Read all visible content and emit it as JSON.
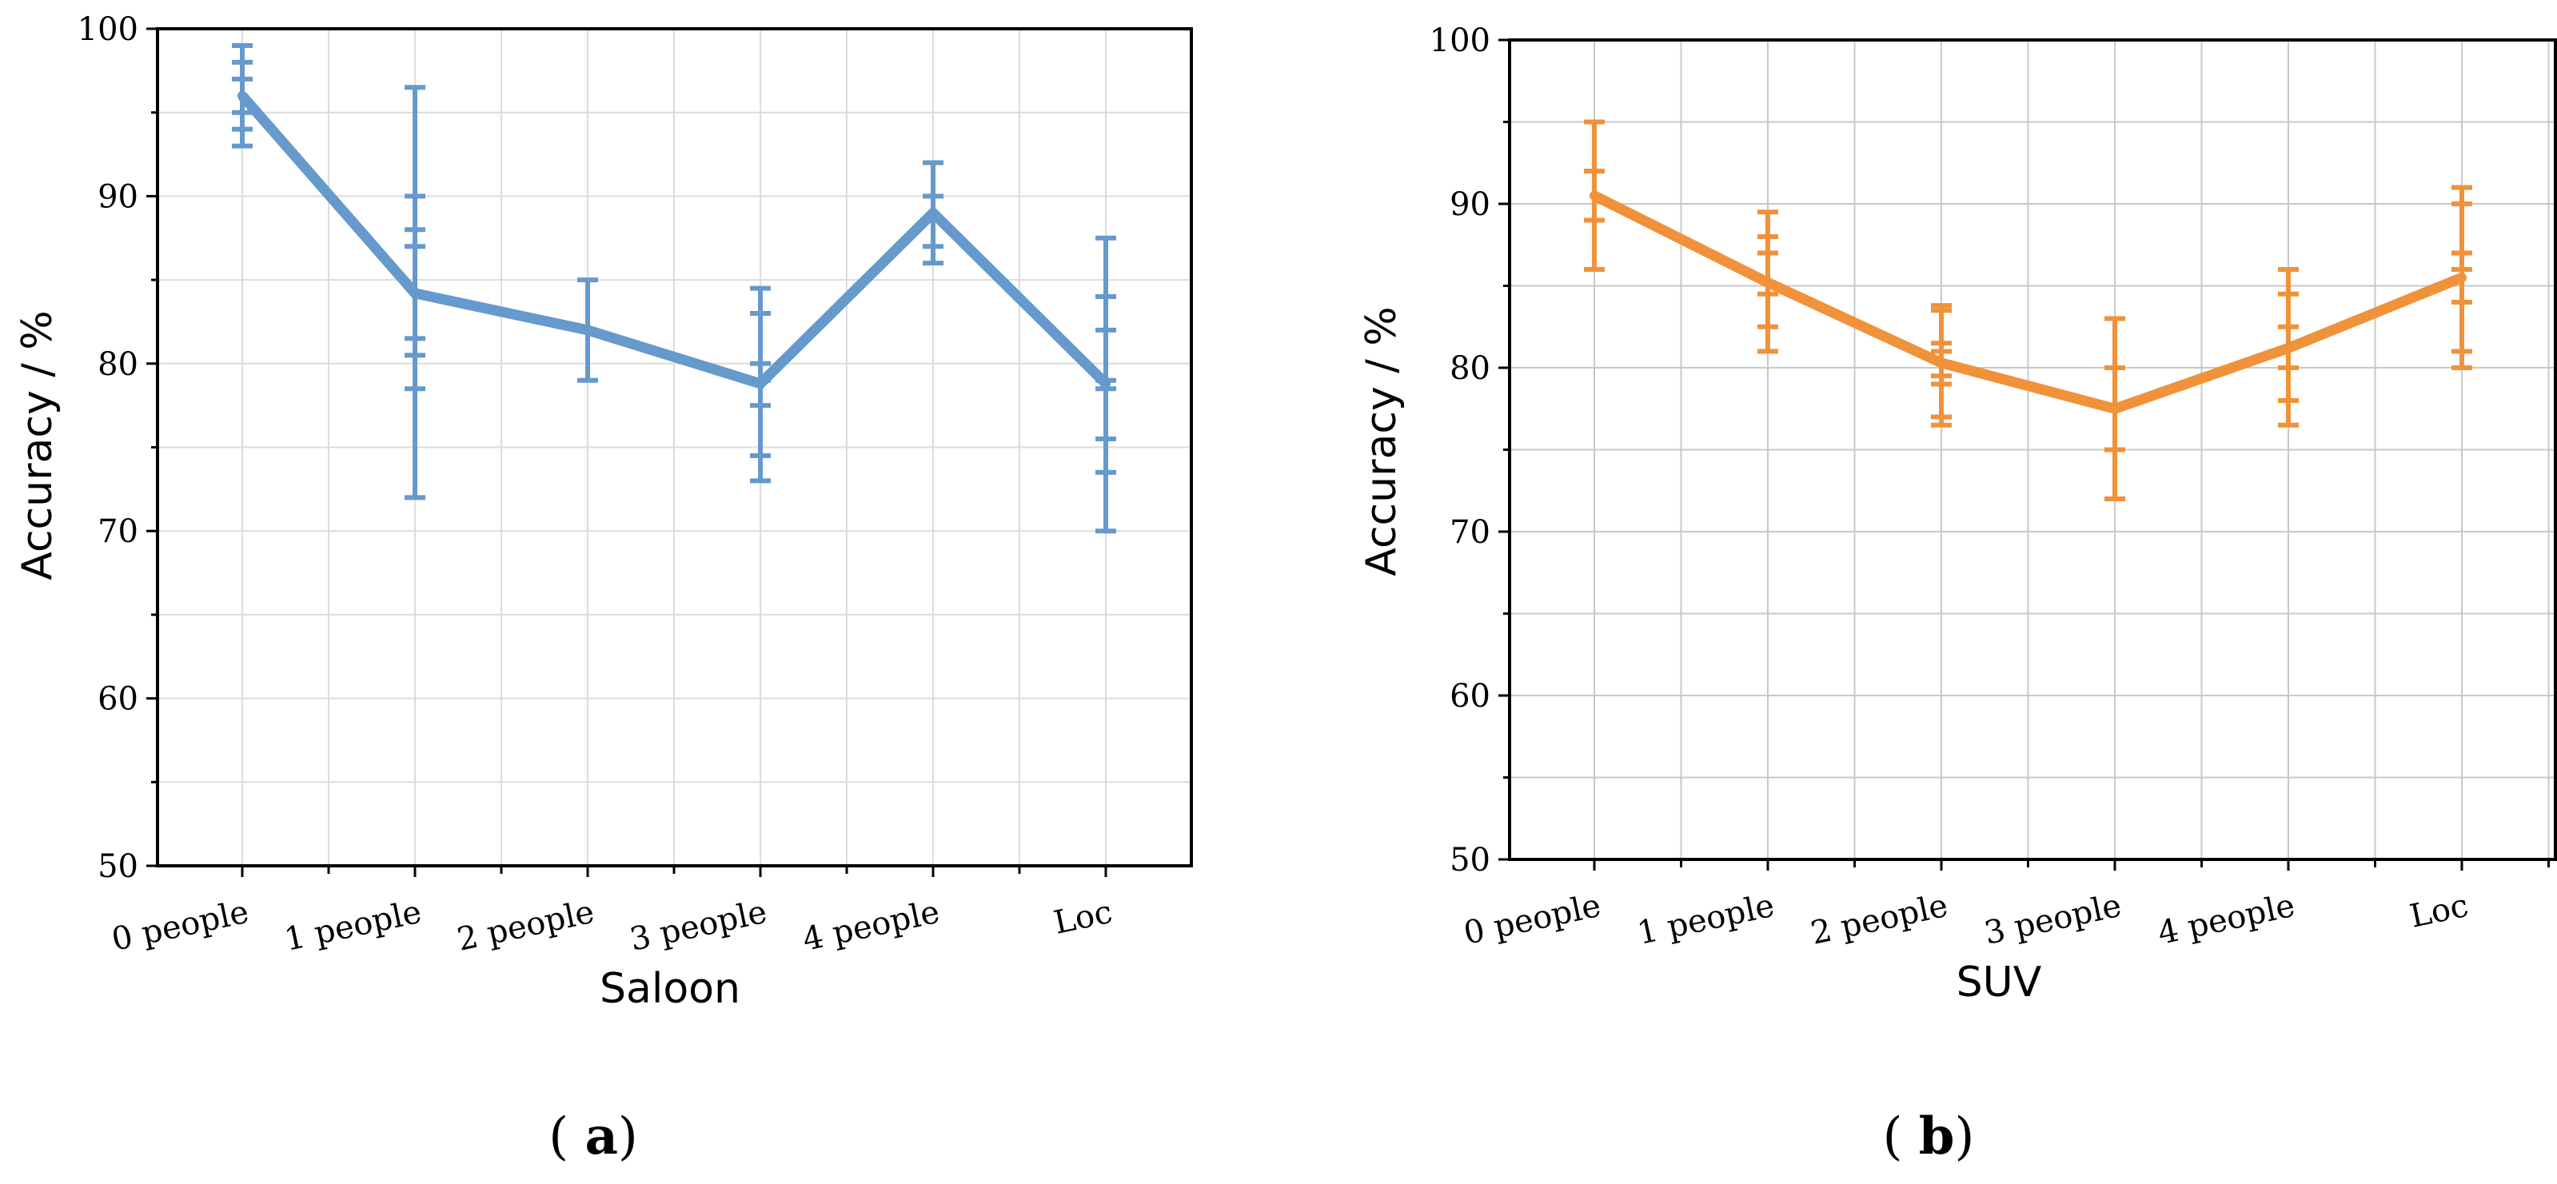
{
  "colors": {
    "saloon": "#6699cc",
    "suv": "#f0923a"
  },
  "chart_data": [
    {
      "type": "line",
      "panel": "(a)",
      "title": "",
      "xlabel": "Saloon",
      "ylabel": "Accuracy / %",
      "ylim": [
        50,
        100
      ],
      "yticks": [
        50,
        60,
        70,
        80,
        90,
        100
      ],
      "categories": [
        "0 people",
        "1 people",
        "2 people",
        "3 people",
        "4 people",
        "Loc"
      ],
      "grid": true,
      "series": [
        {
          "name": "Saloon",
          "values": [
            96,
            84.2,
            82,
            78.8,
            89,
            78.8
          ]
        }
      ],
      "error_caps": [
        [
          99,
          98,
          97,
          95,
          94,
          93
        ],
        [
          96.5,
          90,
          88,
          87,
          81.5,
          80.5,
          78.5,
          72
        ],
        [
          85,
          79
        ],
        [
          84.5,
          83,
          80,
          79,
          77.5,
          74.5,
          73
        ],
        [
          92,
          90,
          87,
          86
        ],
        [
          87.5,
          84,
          82,
          79,
          78.5,
          75.5,
          73.5,
          70
        ]
      ]
    },
    {
      "type": "line",
      "panel": "(b)",
      "title": "",
      "xlabel": "SUV",
      "ylabel": "Accuracy / %",
      "ylim": [
        50,
        100
      ],
      "yticks": [
        50,
        60,
        70,
        80,
        90,
        100
      ],
      "categories": [
        "0 people",
        "1 people",
        "2 people",
        "3 people",
        "4 people",
        "Loc"
      ],
      "grid": true,
      "series": [
        {
          "name": "SUV",
          "values": [
            90.5,
            85.2,
            80.3,
            77.5,
            81.2,
            85.5
          ]
        }
      ],
      "error_caps": [
        [
          95,
          92,
          89,
          86
        ],
        [
          89.5,
          88,
          87,
          84.5,
          82.5,
          81
        ],
        [
          83.8,
          83.5,
          81.5,
          81,
          79.5,
          79,
          77,
          76.5
        ],
        [
          83,
          80,
          75,
          72
        ],
        [
          86,
          84.5,
          82.5,
          80,
          78,
          76.5
        ],
        [
          91,
          90,
          87,
          86,
          84,
          81,
          80
        ]
      ]
    }
  ]
}
